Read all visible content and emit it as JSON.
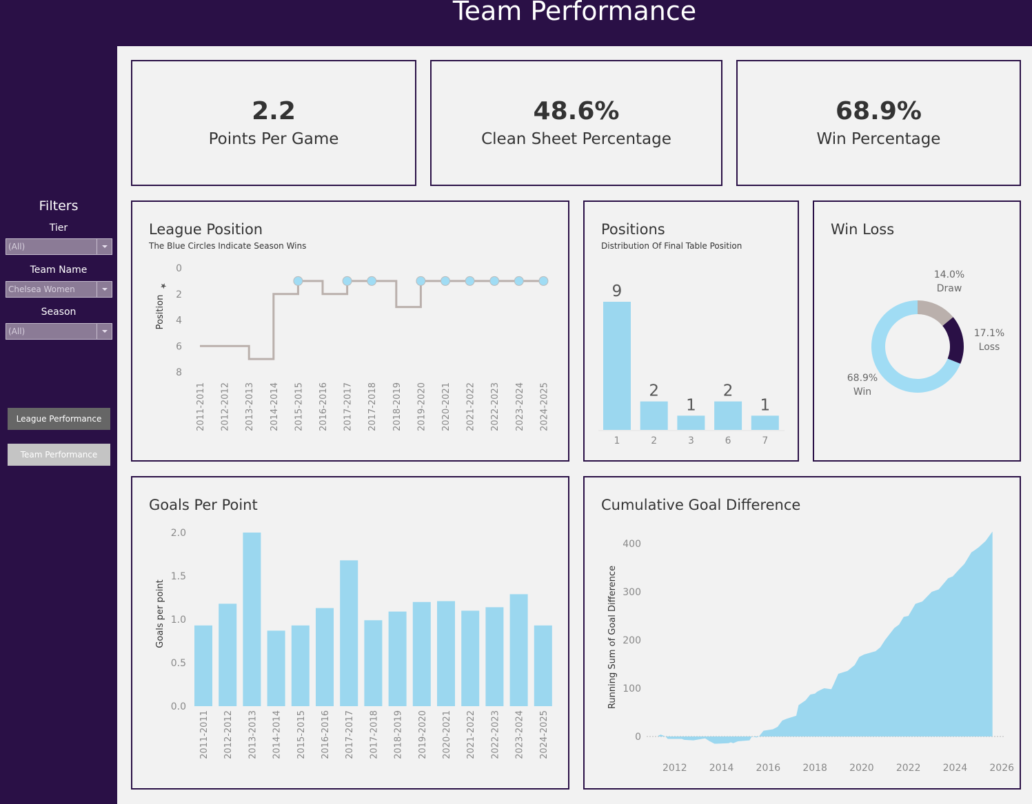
{
  "header": {
    "title": "Team Performance"
  },
  "sidebar": {
    "filters_title": "Filters",
    "filters": [
      {
        "label": "Tier",
        "value": "(All)"
      },
      {
        "label": "Team Name",
        "value": "Chelsea Women"
      },
      {
        "label": "Season",
        "value": "(All)"
      }
    ],
    "nav_buttons": [
      {
        "label": "League Performance"
      },
      {
        "label": "Team Performance"
      }
    ]
  },
  "kpis": [
    {
      "value": "2.2",
      "label": "Points Per Game"
    },
    {
      "value": "48.6%",
      "label": "Clean Sheet Percentage"
    },
    {
      "value": "68.9%",
      "label": "Win Percentage"
    }
  ],
  "colors": {
    "brand": "#2a1046",
    "bar": "#9bd7ef",
    "line": "#bab0ac",
    "win": "#a0dcf4",
    "draw": "#bab0ac",
    "loss": "#2a1046"
  },
  "chart_data": [
    {
      "id": "league_position",
      "type": "line",
      "title": "League Position",
      "subtitle": "The Blue Circles Indicate Season Wins",
      "ylabel": "Position",
      "ylim": [
        0,
        8
      ],
      "yticks": [
        "0",
        "2",
        "4",
        "6",
        "8"
      ],
      "y_reversed": true,
      "step": true,
      "categories": [
        "2011-2011",
        "2012-2012",
        "2013-2013",
        "2014-2014",
        "2015-2015",
        "2016-2016",
        "2017-2017",
        "2017-2018",
        "2018-2019",
        "2019-2020",
        "2020-2021",
        "2021-2022",
        "2022-2023",
        "2023-2024",
        "2024-2025"
      ],
      "values": [
        6,
        6,
        7,
        2,
        1,
        2,
        1,
        1,
        3,
        1,
        1,
        1,
        1,
        1,
        1
      ],
      "win_markers": [
        false,
        false,
        false,
        false,
        true,
        false,
        true,
        true,
        false,
        true,
        true,
        true,
        true,
        true,
        true
      ]
    },
    {
      "id": "positions",
      "type": "bar",
      "title": "Positions",
      "subtitle": "Distribution Of Final Table Position",
      "categories": [
        "1",
        "2",
        "3",
        "6",
        "7"
      ],
      "values": [
        9,
        2,
        1,
        2,
        1
      ],
      "data_labels": [
        "9",
        "2",
        "1",
        "2",
        "1"
      ]
    },
    {
      "id": "win_loss",
      "type": "pie",
      "donut": true,
      "title": "Win Loss",
      "slices": [
        {
          "label": "Draw",
          "value": 14.0,
          "text": "14.0%"
        },
        {
          "label": "Loss",
          "value": 17.1,
          "text": "17.1%"
        },
        {
          "label": "Win",
          "value": 68.9,
          "text": "68.9%"
        }
      ]
    },
    {
      "id": "goals_per_point",
      "type": "bar",
      "title": "Goals Per Point",
      "ylabel": "Goals per point",
      "ylim": [
        0,
        2.0
      ],
      "yticks": [
        "0.0",
        "0.5",
        "1.0",
        "1.5",
        "2.0"
      ],
      "categories": [
        "2011-2011",
        "2012-2012",
        "2013-2013",
        "2014-2014",
        "2015-2015",
        "2016-2016",
        "2017-2017",
        "2017-2018",
        "2018-2019",
        "2019-2020",
        "2020-2021",
        "2021-2022",
        "2022-2023",
        "2023-2024",
        "2024-2025"
      ],
      "values": [
        0.93,
        1.18,
        2.0,
        0.87,
        0.93,
        1.13,
        1.68,
        0.99,
        1.09,
        1.2,
        1.21,
        1.1,
        1.14,
        1.29,
        0.93
      ]
    },
    {
      "id": "cumulative_goal_difference",
      "type": "area",
      "title": "Cumulative Goal Difference",
      "ylabel": "Running Sum of Goal Difference",
      "xlim": [
        2010.5,
        2026.2
      ],
      "ylim": [
        -35,
        430
      ],
      "xticks": [
        "2012",
        "2014",
        "2016",
        "2018",
        "2020",
        "2022",
        "2024",
        "2026"
      ],
      "yticks": [
        "0",
        "100",
        "200",
        "300",
        "400"
      ],
      "x": [
        2011.3,
        2011.4,
        2011.6,
        2011.7,
        2012.3,
        2012.4,
        2012.8,
        2013.3,
        2013.5,
        2013.7,
        2013.8,
        2014.3,
        2014.4,
        2014.5,
        2014.7,
        2015.2,
        2015.3,
        2015.5,
        2015.6,
        2015.8,
        2016.2,
        2016.4,
        2016.6,
        2016.8,
        2017.2,
        2017.3,
        2017.6,
        2017.8,
        2018.0,
        2018.1,
        2018.3,
        2018.4,
        2018.7,
        2018.8,
        2019.0,
        2019.4,
        2019.7,
        2019.9,
        2020.1,
        2020.6,
        2020.8,
        2021.0,
        2021.4,
        2021.6,
        2021.8,
        2022.0,
        2022.3,
        2022.6,
        2022.8,
        2023.0,
        2023.3,
        2023.7,
        2023.9,
        2024.2,
        2024.4,
        2024.7,
        2024.8,
        2025.0,
        2025.3,
        2025.6
      ],
      "values": [
        2,
        4,
        0,
        -5,
        -5,
        -7,
        -8,
        -4,
        -10,
        -15,
        -15,
        -14,
        -12,
        -14,
        -10,
        -8,
        0,
        -2,
        0,
        12,
        15,
        20,
        33,
        37,
        43,
        65,
        75,
        87,
        89,
        93,
        98,
        100,
        98,
        108,
        130,
        136,
        148,
        165,
        170,
        177,
        185,
        200,
        225,
        232,
        248,
        250,
        275,
        280,
        290,
        300,
        305,
        328,
        332,
        348,
        358,
        382,
        385,
        392,
        405,
        425
      ]
    }
  ]
}
